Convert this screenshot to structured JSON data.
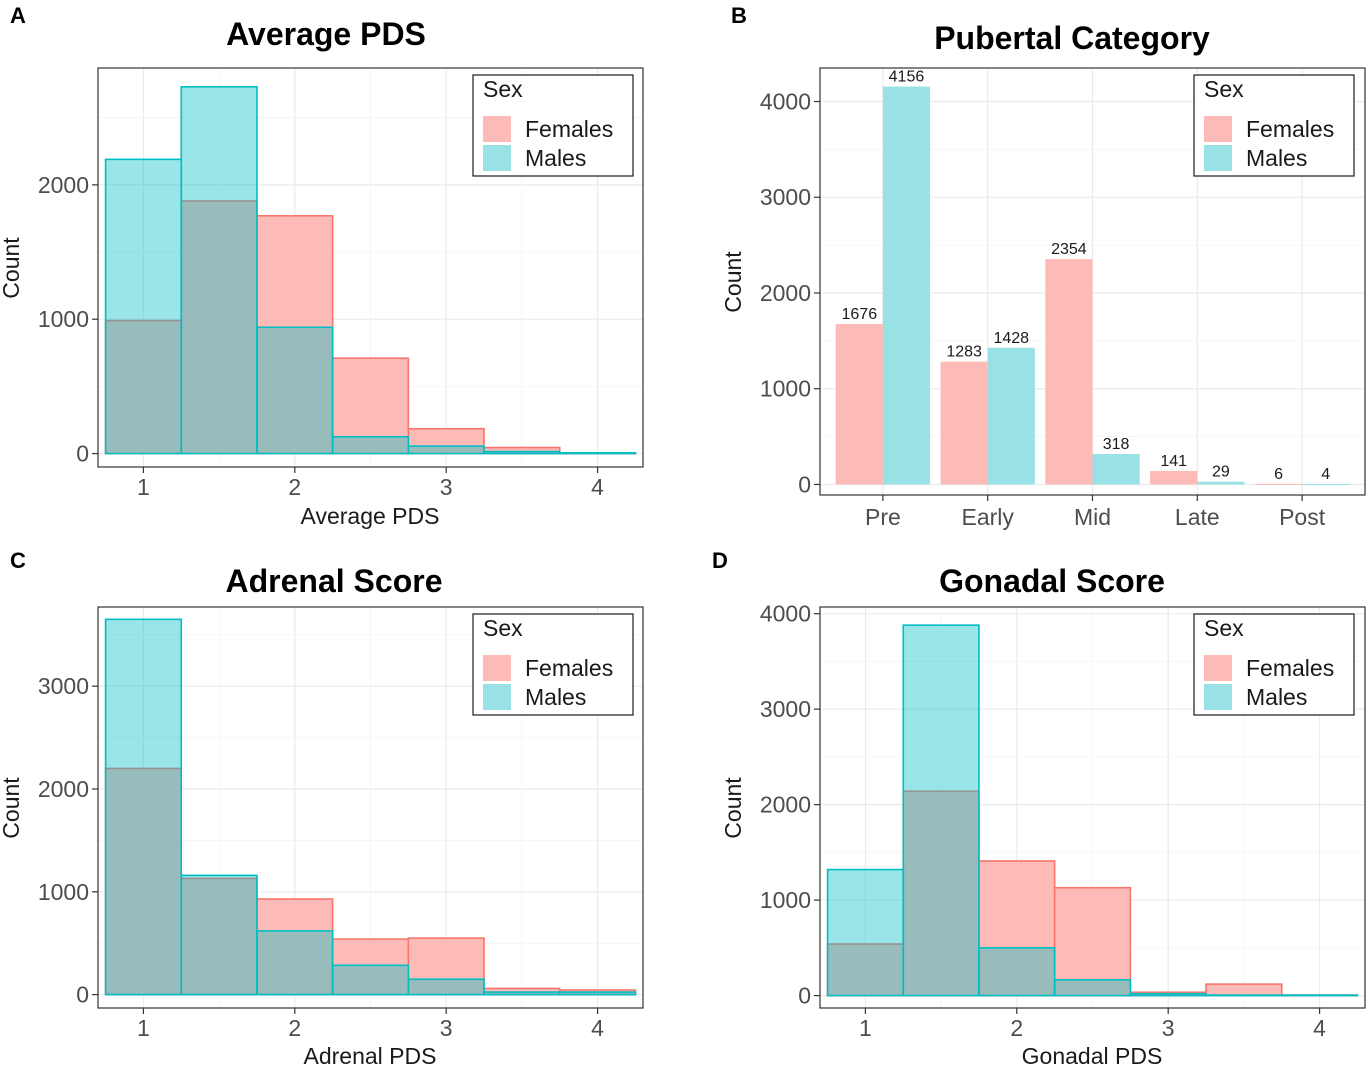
{
  "legend": {
    "title": "Sex",
    "entries": [
      "Females",
      "Males"
    ]
  },
  "colors": {
    "females": "#F8766D",
    "males": "#00BFC4",
    "females_fill": "#FDBBB7",
    "males_fill": "#99E1E4",
    "overlap": "#99AFAF"
  },
  "chart_data": [
    {
      "panel": "A",
      "type": "histogram",
      "title": "Average PDS",
      "xlabel": "Average PDS",
      "ylabel": "Count",
      "xlim": [
        0.7,
        4.3
      ],
      "ylim": [
        -100,
        2870
      ],
      "xticks": [
        1,
        2,
        3,
        4
      ],
      "yticks": [
        0,
        1000,
        2000
      ],
      "bin_edges": [
        0.75,
        1.25,
        1.75,
        2.25,
        2.75,
        3.25,
        3.75,
        4.25
      ],
      "series": [
        {
          "name": "Females",
          "values": [
            990,
            1880,
            1770,
            710,
            185,
            45,
            5
          ]
        },
        {
          "name": "Males",
          "values": [
            2190,
            2730,
            940,
            125,
            55,
            15,
            5
          ]
        }
      ],
      "legend_position": "top-right"
    },
    {
      "panel": "B",
      "type": "bar",
      "title": "Pubertal Category",
      "xlabel": "",
      "ylabel": "Count",
      "ylim": [
        -110,
        4350
      ],
      "yticks": [
        0,
        1000,
        2000,
        3000,
        4000
      ],
      "categories": [
        "Pre",
        "Early",
        "Mid",
        "Late",
        "Post"
      ],
      "series": [
        {
          "name": "Females",
          "values": [
            1676,
            1283,
            2354,
            141,
            6
          ]
        },
        {
          "name": "Males",
          "values": [
            4156,
            1428,
            318,
            29,
            4
          ]
        }
      ],
      "legend_position": "top-right"
    },
    {
      "panel": "C",
      "type": "histogram",
      "title": "Adrenal Score",
      "xlabel": "Adrenal PDS",
      "ylabel": "Count",
      "xlim": [
        0.7,
        4.3
      ],
      "ylim": [
        -130,
        3770
      ],
      "xticks": [
        1,
        2,
        3,
        4
      ],
      "yticks": [
        0,
        1000,
        2000,
        3000
      ],
      "bin_edges": [
        0.75,
        1.25,
        1.75,
        2.25,
        2.75,
        3.25,
        3.75,
        4.25
      ],
      "series": [
        {
          "name": "Females",
          "values": [
            2200,
            1130,
            930,
            540,
            550,
            60,
            45
          ]
        },
        {
          "name": "Males",
          "values": [
            3650,
            1160,
            620,
            285,
            150,
            25,
            25
          ]
        }
      ],
      "legend_position": "top-right"
    },
    {
      "panel": "D",
      "type": "histogram",
      "title": "Gonadal Score",
      "xlabel": "Gonadal PDS",
      "ylabel": "Count",
      "xlim": [
        0.7,
        4.3
      ],
      "ylim": [
        -130,
        4070
      ],
      "xticks": [
        1,
        2,
        3,
        4
      ],
      "yticks": [
        0,
        1000,
        2000,
        3000,
        4000
      ],
      "bin_edges": [
        0.75,
        1.25,
        1.75,
        2.25,
        2.75,
        3.25,
        3.75,
        4.25
      ],
      "series": [
        {
          "name": "Females",
          "values": [
            540,
            2140,
            1410,
            1130,
            35,
            120,
            5
          ]
        },
        {
          "name": "Males",
          "values": [
            1320,
            3880,
            500,
            165,
            20,
            5,
            5
          ]
        }
      ],
      "legend_position": "top-right"
    }
  ]
}
